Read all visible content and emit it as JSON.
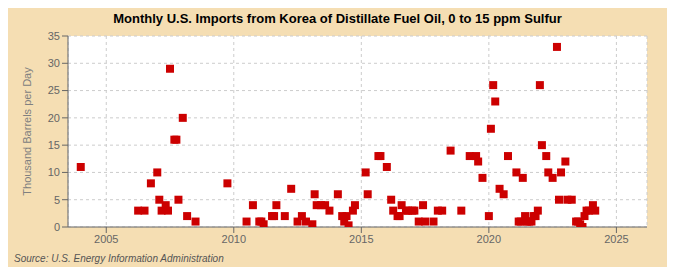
{
  "chart_data": {
    "type": "scatter",
    "title": "Monthly U.S. Imports from Korea of Distillate Fuel Oil, 0 to 15 ppm Sulfur",
    "y_label": "Thousand Barrels per Day",
    "annotations": [
      "Source: U.S. Energy Information Administration"
    ],
    "color": "#cc0000",
    "marker": "square",
    "grid": true,
    "xlim": [
      2003.5,
      2026.2
    ],
    "ylim": [
      0,
      35
    ],
    "xticks": [
      2005,
      2010,
      2015,
      2020,
      2025
    ],
    "yticks": [
      0,
      5,
      10,
      15,
      20,
      25,
      30,
      35
    ],
    "x": [
      2004.0,
      2006.25,
      2006.5,
      2006.75,
      2007.0,
      2007.08,
      2007.17,
      2007.33,
      2007.42,
      2007.5,
      2007.67,
      2007.75,
      2007.83,
      2008.0,
      2008.17,
      2008.5,
      2009.75,
      2010.5,
      2010.75,
      2011.0,
      2011.08,
      2011.17,
      2011.5,
      2011.58,
      2011.67,
      2012.0,
      2012.25,
      2012.5,
      2012.67,
      2012.83,
      2013.08,
      2013.17,
      2013.25,
      2013.42,
      2013.58,
      2013.75,
      2014.08,
      2014.25,
      2014.33,
      2014.42,
      2014.5,
      2014.67,
      2014.75,
      2015.17,
      2015.25,
      2015.67,
      2015.75,
      2016.0,
      2016.17,
      2016.25,
      2016.42,
      2016.5,
      2016.58,
      2016.75,
      2016.83,
      2017.0,
      2017.08,
      2017.25,
      2017.42,
      2017.5,
      2017.83,
      2018.0,
      2018.17,
      2018.5,
      2018.92,
      2019.25,
      2019.5,
      2019.58,
      2019.75,
      2020.0,
      2020.08,
      2020.17,
      2020.25,
      2020.42,
      2020.58,
      2020.75,
      2021.08,
      2021.17,
      2021.25,
      2021.33,
      2021.42,
      2021.5,
      2021.58,
      2021.67,
      2021.75,
      2021.83,
      2021.92,
      2022.0,
      2022.08,
      2022.25,
      2022.33,
      2022.5,
      2022.67,
      2022.75,
      2022.83,
      2023.0,
      2023.08,
      2023.25,
      2023.42,
      2023.5,
      2023.58,
      2023.67,
      2023.75,
      2023.83,
      2023.92,
      2024.08,
      2024.17
    ],
    "values": [
      11,
      3,
      3,
      8,
      10,
      5,
      3,
      4,
      3,
      29,
      16,
      16,
      5,
      20,
      2,
      1,
      8,
      1,
      4,
      1,
      1,
      0.5,
      2,
      2,
      4,
      2,
      7,
      1,
      2,
      1,
      0.5,
      6,
      4,
      4,
      4,
      3,
      6,
      2,
      1,
      2,
      0.3,
      3,
      4,
      10,
      6,
      13,
      13,
      11,
      5,
      3,
      2,
      2,
      4,
      3,
      3,
      3,
      3,
      1,
      4,
      1,
      1,
      3,
      3,
      14,
      3,
      13,
      13,
      12,
      9,
      2,
      18,
      26,
      23,
      7,
      6,
      13,
      10,
      1,
      1,
      9,
      2,
      1,
      1,
      1,
      2,
      2,
      3,
      26,
      15,
      13,
      10,
      9,
      33,
      5,
      10,
      12,
      5,
      5,
      1,
      1,
      0.5,
      0,
      2,
      3,
      3,
      4,
      3
    ]
  }
}
